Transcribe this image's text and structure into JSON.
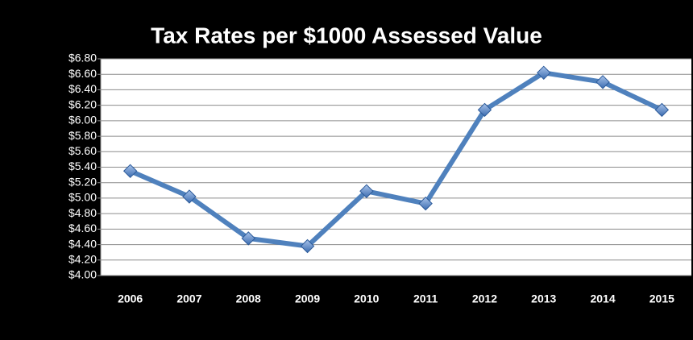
{
  "chart_data": {
    "type": "line",
    "title": "Tax Rates per $1000 Assessed Value",
    "categories": [
      "2006",
      "2007",
      "2008",
      "2009",
      "2010",
      "2011",
      "2012",
      "2013",
      "2014",
      "2015"
    ],
    "values": [
      5.35,
      5.02,
      4.48,
      4.38,
      5.09,
      4.93,
      6.14,
      6.62,
      6.5,
      6.14
    ],
    "color": "#4f81bd",
    "ylim": [
      4.0,
      6.8
    ],
    "yticks": [
      {
        "value": 4.0,
        "label": "$4.00"
      },
      {
        "value": 4.2,
        "label": "$4.20"
      },
      {
        "value": 4.4,
        "label": "$4.40"
      },
      {
        "value": 4.6,
        "label": "$4.60"
      },
      {
        "value": 4.8,
        "label": "$4.80"
      },
      {
        "value": 5.0,
        "label": "$5.00"
      },
      {
        "value": 5.2,
        "label": "$5.20"
      },
      {
        "value": 5.4,
        "label": "$5.40"
      },
      {
        "value": 5.6,
        "label": "$5.60"
      },
      {
        "value": 5.8,
        "label": "$5.80"
      },
      {
        "value": 6.0,
        "label": "$6.00"
      },
      {
        "value": 6.2,
        "label": "$6.20"
      },
      {
        "value": 6.4,
        "label": "$6.40"
      },
      {
        "value": 6.6,
        "label": "$6.60"
      },
      {
        "value": 6.8,
        "label": "$6.80"
      }
    ],
    "grid": true
  }
}
